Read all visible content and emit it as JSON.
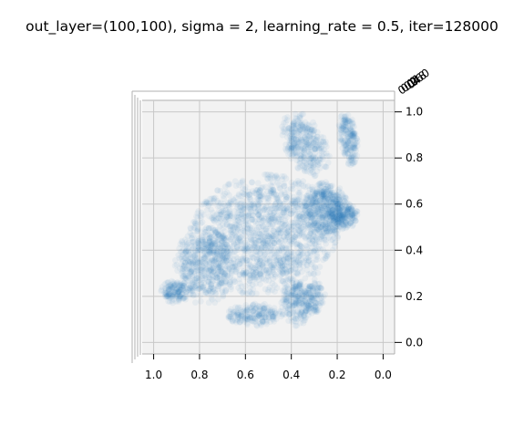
{
  "chart_data": {
    "type": "scatter",
    "projection": "3d",
    "title": "out_layer=(100,100), sigma = 2, learning_rate = 0.5, iter=128000",
    "point_color": "#1f77b4",
    "pane_color": "#f2f2f2",
    "grid": true,
    "x_axis": {
      "range": [
        1.05,
        -0.05
      ],
      "ticks": [
        1.0,
        0.8,
        0.6,
        0.4,
        0.2,
        0.0
      ],
      "tick_labels": [
        "1.0",
        "0.8",
        "0.6",
        "0.4",
        "0.2",
        "0.0"
      ]
    },
    "z_axis": {
      "range": [
        -0.05,
        1.05
      ],
      "ticks": [
        0.0,
        0.2,
        0.4,
        0.6,
        0.8,
        1.0
      ],
      "tick_labels": [
        "0.0",
        "0.2",
        "0.4",
        "0.6",
        "0.8",
        "1.0"
      ]
    },
    "depth_axis": {
      "tick_labels": [
        "0.0",
        "0.2",
        "0.4",
        "0.6",
        "0.8",
        "1.0"
      ]
    },
    "point_alpha": 0.06
  }
}
